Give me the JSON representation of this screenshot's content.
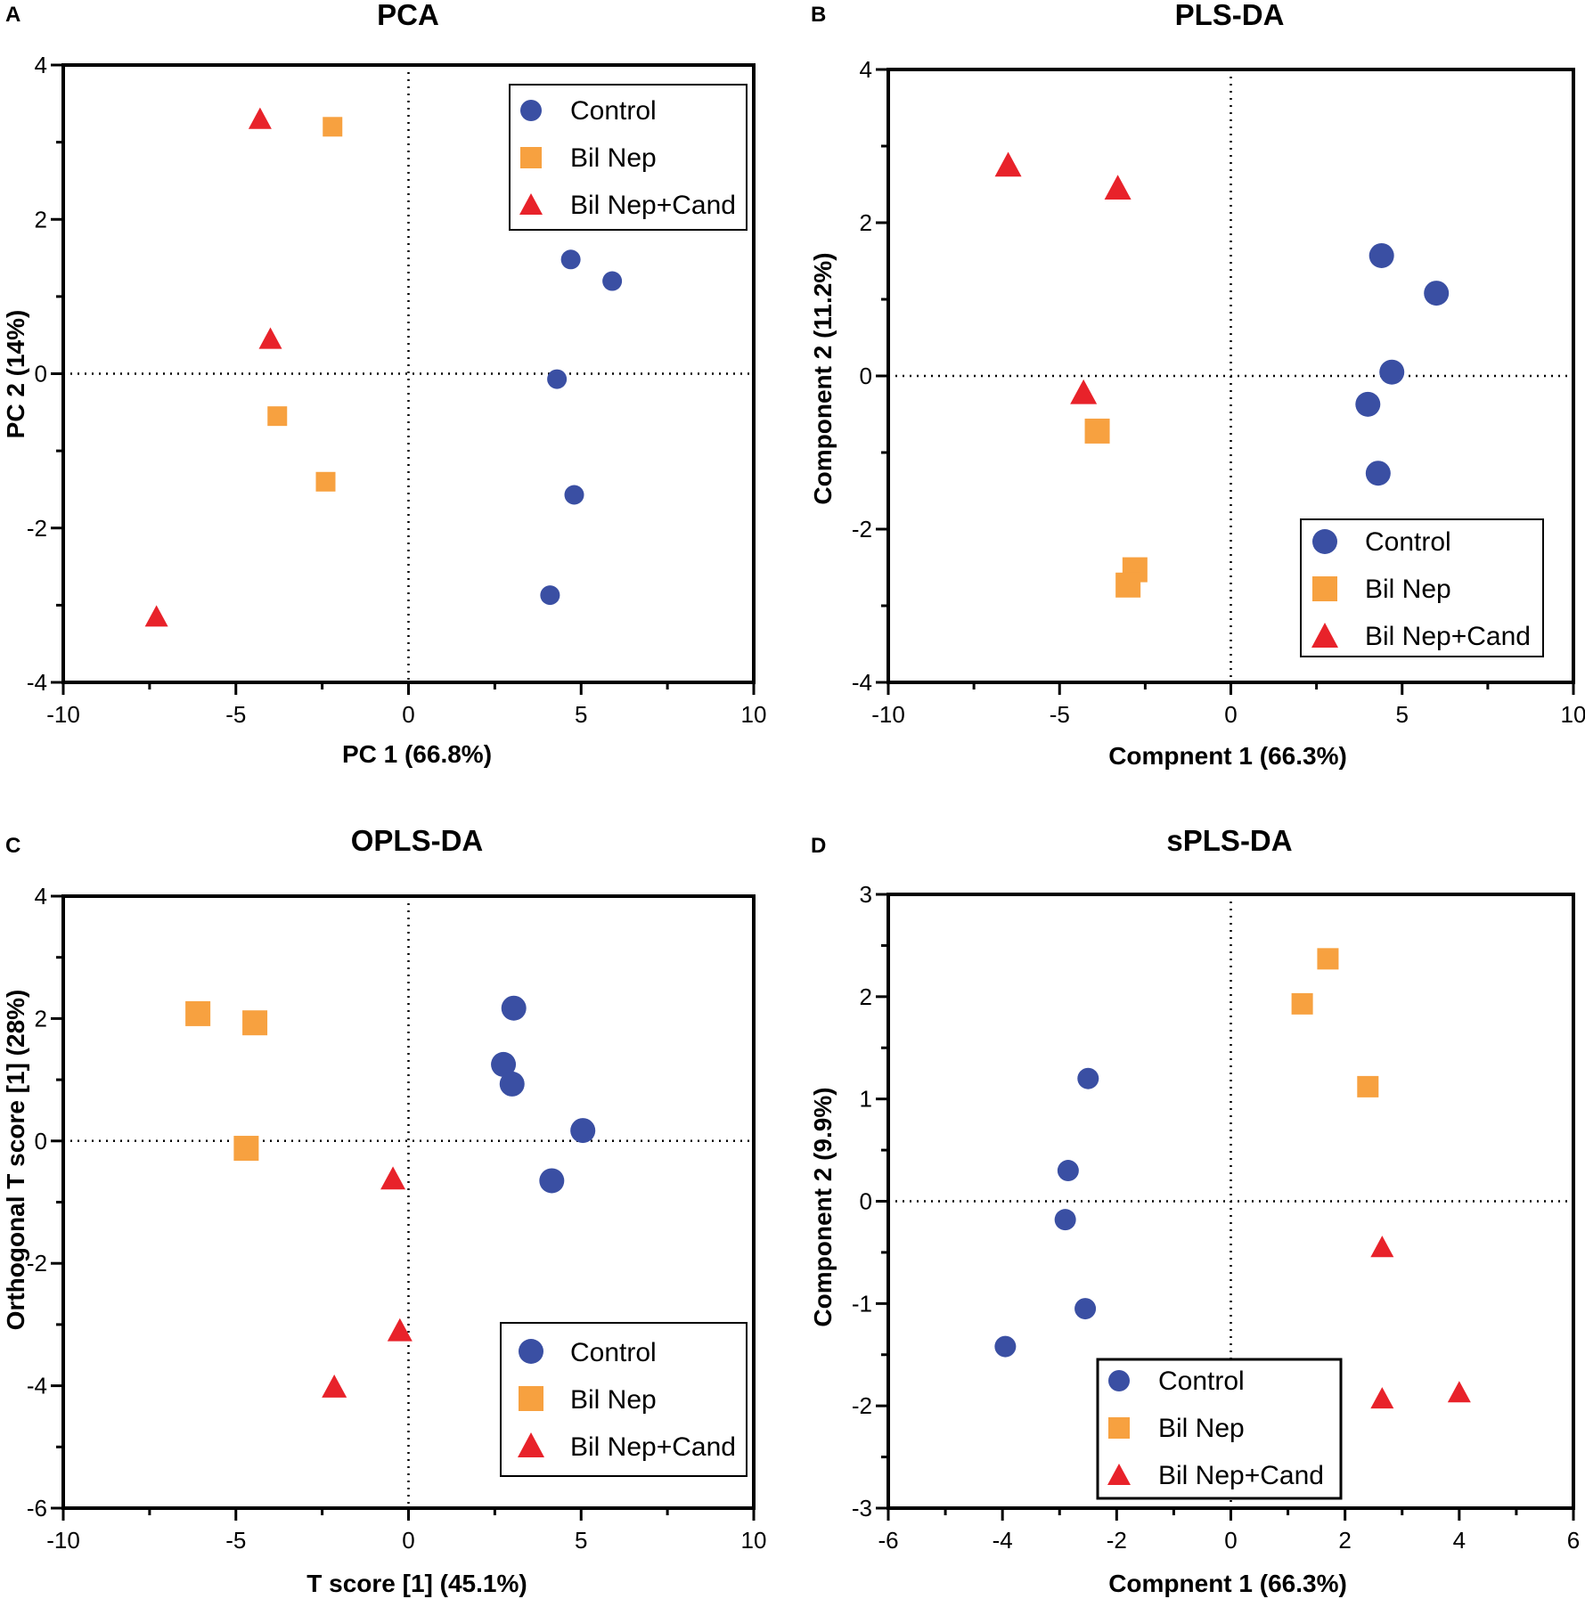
{
  "figure": {
    "colors": {
      "Control": "#3a4fa3",
      "Bil Nep": "#f7a140",
      "Bil Nep+Cand": "#e8222a",
      "axis": "#000000"
    }
  },
  "chart_data": [
    {
      "panel": "A",
      "type": "scatter",
      "title": "PCA",
      "xlabel": "PC 1 (66.8%)",
      "ylabel": "PC 2 (14%)",
      "xlim": [
        -10,
        10
      ],
      "ylim": [
        -4,
        4
      ],
      "xticks": [
        -10,
        -5,
        0,
        5,
        10
      ],
      "yticks": [
        -4,
        -2,
        0,
        2,
        4
      ],
      "xtick_labels": [
        "-10",
        "-5",
        "0",
        "5",
        "10"
      ],
      "ytick_labels": [
        "-4",
        "-2",
        "0",
        "2",
        "4"
      ],
      "legend_position": "top-right",
      "series": [
        {
          "name": "Control",
          "label": "Control",
          "marker": "circle",
          "points": [
            [
              4.7,
              1.48
            ],
            [
              5.9,
              1.2
            ],
            [
              4.3,
              -0.07
            ],
            [
              4.8,
              -1.57
            ],
            [
              4.1,
              -2.87
            ]
          ]
        },
        {
          "name": "Bil Nep",
          "label": "Bil Nep",
          "marker": "square",
          "points": [
            [
              -2.2,
              3.2
            ],
            [
              -3.8,
              -0.55
            ],
            [
              -2.4,
              -1.4
            ]
          ]
        },
        {
          "name": "Bil Nep+Cand",
          "label": "Bil Nep+Cand",
          "marker": "triangle",
          "points": [
            [
              -4.3,
              3.3
            ],
            [
              -4.0,
              0.45
            ],
            [
              -7.3,
              -3.15
            ]
          ]
        }
      ]
    },
    {
      "panel": "B",
      "type": "scatter",
      "title": "PLS-DA",
      "xlabel": "Compnent 1 (66.3%)",
      "ylabel": "Component 2 (11.2%)",
      "xlim": [
        -10,
        10
      ],
      "ylim": [
        -4,
        4
      ],
      "xticks": [
        -10,
        -5,
        0,
        5,
        10
      ],
      "yticks": [
        -4,
        -2,
        0,
        2,
        4
      ],
      "xtick_labels": [
        "-10",
        "-5",
        "0",
        "5",
        "10"
      ],
      "ytick_labels": [
        "-4",
        "-2",
        "0",
        "2",
        "4"
      ],
      "legend_position": "bottom-right",
      "series": [
        {
          "name": "Control",
          "label": "Control",
          "marker": "circle",
          "points": [
            [
              4.4,
              1.57
            ],
            [
              6.0,
              1.08
            ],
            [
              4.7,
              0.05
            ],
            [
              4.0,
              -0.37
            ],
            [
              4.3,
              -1.27
            ]
          ]
        },
        {
          "name": "Bil Nep",
          "label": "Bil Nep",
          "marker": "square",
          "points": [
            [
              -3.9,
              -0.72
            ],
            [
              -2.8,
              -2.53
            ],
            [
              -3.0,
              -2.73
            ]
          ]
        },
        {
          "name": "Bil Nep+Cand",
          "label": "Bil Nep+Cand",
          "marker": "triangle",
          "points": [
            [
              -6.5,
              2.75
            ],
            [
              -3.3,
              2.45
            ],
            [
              -4.3,
              -0.22
            ]
          ]
        }
      ]
    },
    {
      "panel": "C",
      "type": "scatter",
      "title": "OPLS-DA",
      "xlabel": "T score [1] (45.1%)",
      "ylabel": "Orthogonal T score [1] (28%)",
      "xlim": [
        -10,
        10
      ],
      "ylim": [
        -6,
        4
      ],
      "xticks": [
        -10,
        -5,
        0,
        5,
        10
      ],
      "yticks": [
        -6,
        -4,
        -2,
        0,
        2,
        4
      ],
      "xtick_labels": [
        "-10",
        "-5",
        "0",
        "5",
        "10"
      ],
      "ytick_labels": [
        "-6",
        "-4",
        "-2",
        "0",
        "2",
        "4"
      ],
      "legend_position": "bottom-right",
      "series": [
        {
          "name": "Control",
          "label": "Control",
          "marker": "circle",
          "points": [
            [
              3.05,
              2.17
            ],
            [
              2.75,
              1.25
            ],
            [
              3.0,
              0.93
            ],
            [
              5.05,
              0.17
            ],
            [
              4.15,
              -0.65
            ]
          ]
        },
        {
          "name": "Bil Nep",
          "label": "Bil Nep",
          "marker": "square",
          "points": [
            [
              -6.1,
              2.08
            ],
            [
              -4.45,
              1.93
            ],
            [
              -4.7,
              -0.12
            ]
          ]
        },
        {
          "name": "Bil Nep+Cand",
          "label": "Bil Nep+Cand",
          "marker": "triangle",
          "points": [
            [
              -0.45,
              -0.62
            ],
            [
              -0.25,
              -3.1
            ],
            [
              -2.15,
              -4.02
            ]
          ]
        }
      ]
    },
    {
      "panel": "D",
      "type": "scatter",
      "title": "sPLS-DA",
      "xlabel": "Compnent 1 (66.3%)",
      "ylabel": "Component 2 (9.9%)",
      "xlim": [
        -6,
        6
      ],
      "ylim": [
        -3,
        3
      ],
      "xticks": [
        -6,
        -4,
        -2,
        0,
        2,
        4,
        6
      ],
      "yticks": [
        -3,
        -2,
        -1,
        0,
        1,
        2,
        3
      ],
      "xtick_labels": [
        "-6",
        "-4",
        "-2",
        "0",
        "2",
        "4",
        "6"
      ],
      "ytick_labels": [
        "-3",
        "-2",
        "-1",
        "0",
        "1",
        "2",
        "3"
      ],
      "legend_position": "bottom-center",
      "series": [
        {
          "name": "Control",
          "label": "Control",
          "marker": "circle",
          "points": [
            [
              -2.5,
              1.2
            ],
            [
              -2.85,
              0.3
            ],
            [
              -2.9,
              -0.18
            ],
            [
              -2.55,
              -1.05
            ],
            [
              -3.95,
              -1.42
            ]
          ]
        },
        {
          "name": "Bil Nep",
          "label": "Bil Nep",
          "marker": "square",
          "points": [
            [
              1.7,
              2.37
            ],
            [
              1.25,
              1.93
            ],
            [
              2.4,
              1.12
            ]
          ]
        },
        {
          "name": "Bil Nep+Cand",
          "label": "Bil Nep+Cand",
          "marker": "triangle",
          "points": [
            [
              2.65,
              -0.45
            ],
            [
              2.65,
              -1.93
            ],
            [
              4.0,
              -1.87
            ]
          ]
        }
      ]
    }
  ]
}
